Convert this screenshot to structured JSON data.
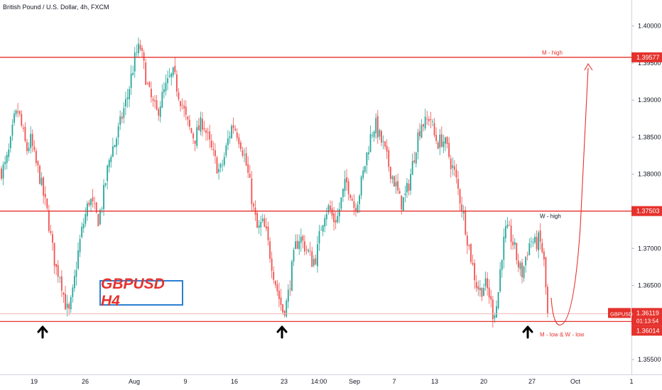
{
  "symbol_line": "British Pound / U.S. Dollar, 4h, FXCM",
  "watermark_title": "GBPUSD H4",
  "colors": {
    "up": "#26a69a",
    "down": "#ef5350",
    "level": "#e5322d",
    "axis_text": "#131722",
    "current_price_line": "#f2b8b5"
  },
  "chart_data": {
    "type": "candlestick",
    "title": "",
    "ylim": [
      1.353,
      1.4035
    ],
    "y_ticks": [
      "1.40000",
      "1.39500",
      "1.39000",
      "1.38500",
      "1.38000",
      "1.37500",
      "1.37000",
      "1.36500",
      "1.36000",
      "1.35500"
    ],
    "x_ticks": [
      "19",
      "26",
      "Aug",
      "9",
      "16",
      "23",
      "14:00",
      "Sep",
      "7",
      "13",
      "20",
      "27",
      "Oct",
      "1"
    ],
    "price_levels": [
      {
        "name": "M - high",
        "value": 1.39577,
        "label": "1.39577"
      },
      {
        "name": "W - high",
        "value": 1.37503,
        "label": "1.37503"
      },
      {
        "name": "M - low & W - low",
        "value": 1.36014,
        "label": "1.36014"
      }
    ],
    "current_price": {
      "symbol": "GBPUSD",
      "value": 1.36119,
      "label": "1.36119",
      "countdown": "01:13:54"
    },
    "arrows_up_count": 3,
    "projection": "curve up from M - low & W - low to M - high",
    "close_path": [
      1.3805,
      1.3812,
      1.3835,
      1.3872,
      1.3886,
      1.3858,
      1.3832,
      1.3846,
      1.3818,
      1.38,
      1.3772,
      1.3745,
      1.3705,
      1.3672,
      1.3665,
      1.363,
      1.361,
      1.364,
      1.3685,
      1.372,
      1.3745,
      1.3768,
      1.3752,
      1.3738,
      1.3762,
      1.3798,
      1.383,
      1.3842,
      1.3862,
      1.3885,
      1.3905,
      1.3935,
      1.3962,
      1.3972,
      1.3942,
      1.3912,
      1.3895,
      1.3882,
      1.39,
      1.3915,
      1.3928,
      1.3935,
      1.3912,
      1.3895,
      1.3872,
      1.3858,
      1.3848,
      1.3862,
      1.3872,
      1.385,
      1.3832,
      1.3815,
      1.3802,
      1.3822,
      1.3848,
      1.3868,
      1.3858,
      1.3842,
      1.382,
      1.379,
      1.3752,
      1.3722,
      1.3735,
      1.372,
      1.369,
      1.366,
      1.3635,
      1.3615,
      1.3628,
      1.3668,
      1.3702,
      1.3716,
      1.3705,
      1.3695,
      1.3682,
      1.369,
      1.3728,
      1.375,
      1.3755,
      1.3738,
      1.3742,
      1.3768,
      1.379,
      1.3778,
      1.3755,
      1.377,
      1.3798,
      1.3828,
      1.3855,
      1.3868,
      1.385,
      1.3836,
      1.3815,
      1.3798,
      1.3782,
      1.376,
      1.3768,
      1.3788,
      1.3818,
      1.385,
      1.387,
      1.3868,
      1.388,
      1.3852,
      1.3842,
      1.3848,
      1.3835,
      1.3815,
      1.3798,
      1.377,
      1.3745,
      1.371,
      1.368,
      1.3652,
      1.3642,
      1.3652,
      1.364,
      1.3612,
      1.3625,
      1.369,
      1.3722,
      1.372,
      1.3702,
      1.3678,
      1.3665,
      1.3695,
      1.3712,
      1.3705,
      1.3712,
      1.369,
      1.3612
    ]
  }
}
